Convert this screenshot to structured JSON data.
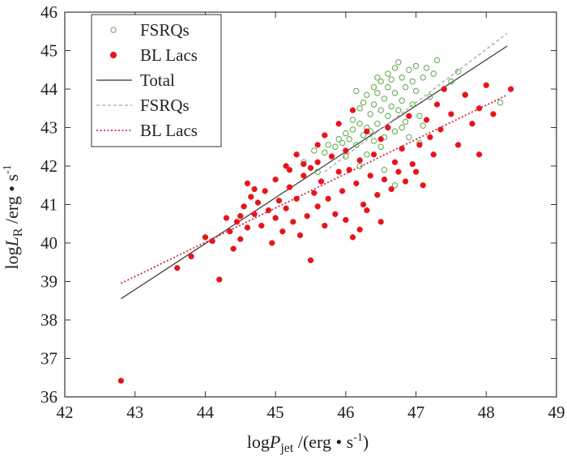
{
  "chart_data": {
    "type": "scatter",
    "title": "",
    "xlabel": {
      "prefix": "log",
      "var": "P",
      "sub": "jet",
      "unit": " /(erg • s",
      "sup": "-1",
      "suffix": ")"
    },
    "ylabel": {
      "prefix": "log",
      "var": "L",
      "sub": "R",
      "unit": " /erg • s",
      "sup": "-1"
    },
    "xlim": [
      42,
      49
    ],
    "ylim": [
      36,
      46
    ],
    "xticks": [
      42,
      43,
      44,
      45,
      46,
      47,
      48,
      49
    ],
    "yticks": [
      36,
      37,
      38,
      39,
      40,
      41,
      42,
      43,
      44,
      45,
      46
    ],
    "legend_position": "top-left",
    "colors": {
      "fsrq": "#5aa84a",
      "bllac": "#e8141c",
      "total": "#333333",
      "fsrq_fit": "#b5b5b5",
      "bllac_fit": "#c8102e"
    },
    "legend": [
      {
        "label": "FSRQs",
        "kind": "open-circle",
        "color": "#5aa84a"
      },
      {
        "label": "BL Lacs",
        "kind": "filled-circle",
        "color": "#e8141c"
      },
      {
        "label": "Total",
        "kind": "solid-line",
        "color": "#333333"
      },
      {
        "label": "FSRQs",
        "kind": "dashed-line",
        "color": "#b5b5b5"
      },
      {
        "label": "BL Lacs",
        "kind": "dotted-line",
        "color": "#c8102e"
      }
    ],
    "fits": [
      {
        "name": "Total",
        "style": "solid",
        "color": "#333333",
        "x": [
          42.8,
          48.3
        ],
        "y": [
          38.55,
          45.12
        ]
      },
      {
        "name": "FSRQs",
        "style": "dashed",
        "color": "#b5b5b5",
        "x": [
          45.7,
          48.3
        ],
        "y": [
          41.85,
          45.45
        ]
      },
      {
        "name": "BL Lacs",
        "style": "dotted",
        "color": "#c8102e",
        "x": [
          42.8,
          48.3
        ],
        "y": [
          38.95,
          43.85
        ]
      }
    ],
    "series": [
      {
        "name": "FSRQs",
        "marker": "open-circle",
        "color": "#5aa84a",
        "points": [
          [
            45.55,
            42.4
          ],
          [
            45.7,
            42.35
          ],
          [
            45.75,
            42.55
          ],
          [
            45.85,
            42.5
          ],
          [
            45.9,
            42.7
          ],
          [
            45.95,
            42.6
          ],
          [
            46.0,
            42.85
          ],
          [
            46.05,
            42.7
          ],
          [
            46.1,
            42.95
          ],
          [
            46.1,
            43.2
          ],
          [
            46.15,
            42.55
          ],
          [
            46.2,
            43.1
          ],
          [
            46.2,
            43.5
          ],
          [
            46.25,
            42.8
          ],
          [
            46.25,
            43.65
          ],
          [
            46.3,
            43.0
          ],
          [
            46.3,
            43.85
          ],
          [
            46.35,
            43.35
          ],
          [
            46.4,
            42.65
          ],
          [
            46.4,
            43.6
          ],
          [
            46.4,
            44.05
          ],
          [
            46.45,
            43.1
          ],
          [
            46.45,
            43.9
          ],
          [
            46.5,
            43.45
          ],
          [
            46.5,
            44.2
          ],
          [
            46.55,
            42.75
          ],
          [
            46.55,
            43.75
          ],
          [
            46.6,
            43.3
          ],
          [
            46.6,
            44.05
          ],
          [
            46.6,
            44.4
          ],
          [
            46.65,
            43.55
          ],
          [
            46.65,
            44.25
          ],
          [
            46.7,
            42.9
          ],
          [
            46.7,
            43.9
          ],
          [
            46.7,
            44.55
          ],
          [
            46.75,
            43.45
          ],
          [
            46.75,
            44.7
          ],
          [
            46.8,
            43.7
          ],
          [
            46.8,
            44.3
          ],
          [
            46.85,
            43.15
          ],
          [
            46.85,
            44.05
          ],
          [
            46.9,
            44.5
          ],
          [
            46.95,
            43.6
          ],
          [
            46.95,
            44.2
          ],
          [
            47.0,
            43.95
          ],
          [
            47.0,
            44.6
          ],
          [
            47.05,
            43.3
          ],
          [
            47.1,
            44.3
          ],
          [
            47.15,
            44.55
          ],
          [
            47.2,
            43.8
          ],
          [
            47.25,
            44.4
          ],
          [
            47.3,
            44.75
          ],
          [
            47.4,
            44.0
          ],
          [
            47.5,
            44.2
          ],
          [
            47.6,
            44.45
          ],
          [
            47.7,
            43.85
          ],
          [
            48.2,
            43.65
          ],
          [
            46.0,
            42.25
          ],
          [
            46.2,
            42.0
          ],
          [
            45.4,
            42.1
          ],
          [
            45.6,
            41.85
          ],
          [
            46.3,
            42.3
          ],
          [
            46.5,
            42.5
          ],
          [
            46.9,
            42.75
          ],
          [
            47.1,
            43.05
          ],
          [
            46.35,
            42.9
          ],
          [
            46.55,
            41.9
          ],
          [
            46.7,
            41.5
          ],
          [
            46.15,
            43.95
          ],
          [
            46.45,
            44.3
          ],
          [
            46.8,
            43.0
          ],
          [
            47.05,
            42.6
          ]
        ]
      },
      {
        "name": "BL Lacs",
        "marker": "filled-circle",
        "color": "#e8141c",
        "points": [
          [
            42.8,
            36.42
          ],
          [
            43.6,
            39.35
          ],
          [
            43.8,
            39.65
          ],
          [
            44.0,
            40.15
          ],
          [
            44.1,
            40.05
          ],
          [
            44.2,
            39.05
          ],
          [
            44.3,
            40.65
          ],
          [
            44.35,
            40.3
          ],
          [
            44.4,
            39.85
          ],
          [
            44.45,
            40.55
          ],
          [
            44.5,
            40.1
          ],
          [
            44.55,
            40.95
          ],
          [
            44.6,
            41.55
          ],
          [
            44.6,
            40.4
          ],
          [
            44.65,
            41.2
          ],
          [
            44.7,
            40.75
          ],
          [
            44.75,
            41.05
          ],
          [
            44.8,
            40.45
          ],
          [
            44.85,
            41.35
          ],
          [
            44.9,
            40.85
          ],
          [
            44.95,
            40.0
          ],
          [
            45.0,
            41.65
          ],
          [
            45.0,
            40.65
          ],
          [
            45.05,
            41.1
          ],
          [
            45.1,
            40.3
          ],
          [
            45.15,
            42.0
          ],
          [
            45.15,
            40.9
          ],
          [
            45.2,
            41.45
          ],
          [
            45.25,
            40.55
          ],
          [
            45.3,
            42.3
          ],
          [
            45.3,
            41.15
          ],
          [
            45.35,
            40.2
          ],
          [
            45.4,
            42.05
          ],
          [
            45.4,
            41.75
          ],
          [
            45.45,
            40.7
          ],
          [
            45.5,
            39.55
          ],
          [
            45.5,
            41.95
          ],
          [
            45.55,
            41.3
          ],
          [
            45.6,
            42.55
          ],
          [
            45.6,
            40.95
          ],
          [
            45.65,
            41.6
          ],
          [
            45.7,
            40.45
          ],
          [
            45.7,
            42.8
          ],
          [
            45.75,
            41.15
          ],
          [
            45.8,
            42.25
          ],
          [
            45.85,
            40.75
          ],
          [
            45.9,
            43.1
          ],
          [
            45.9,
            41.85
          ],
          [
            45.95,
            41.35
          ],
          [
            46.0,
            42.4
          ],
          [
            46.0,
            40.6
          ],
          [
            46.05,
            41.9
          ],
          [
            46.1,
            40.15
          ],
          [
            46.1,
            43.45
          ],
          [
            46.15,
            41.55
          ],
          [
            46.2,
            42.15
          ],
          [
            46.25,
            41.0
          ],
          [
            46.3,
            42.9
          ],
          [
            46.3,
            40.85
          ],
          [
            46.35,
            41.75
          ],
          [
            46.4,
            42.3
          ],
          [
            46.45,
            41.25
          ],
          [
            46.5,
            40.55
          ],
          [
            46.5,
            42.7
          ],
          [
            46.55,
            41.65
          ],
          [
            46.6,
            43.0
          ],
          [
            46.65,
            41.4
          ],
          [
            46.7,
            42.1
          ],
          [
            46.75,
            41.85
          ],
          [
            46.8,
            42.45
          ],
          [
            46.85,
            41.6
          ],
          [
            46.9,
            43.3
          ],
          [
            46.95,
            42.05
          ],
          [
            47.0,
            41.85
          ],
          [
            47.05,
            42.55
          ],
          [
            47.1,
            41.5
          ],
          [
            47.15,
            43.2
          ],
          [
            47.2,
            42.75
          ],
          [
            47.25,
            42.3
          ],
          [
            47.3,
            43.6
          ],
          [
            47.35,
            42.95
          ],
          [
            47.4,
            44.0
          ],
          [
            47.5,
            43.35
          ],
          [
            47.6,
            42.55
          ],
          [
            47.7,
            43.85
          ],
          [
            47.8,
            43.1
          ],
          [
            47.9,
            42.3
          ],
          [
            47.9,
            43.5
          ],
          [
            48.0,
            44.1
          ],
          [
            48.1,
            43.35
          ],
          [
            48.35,
            44.0
          ],
          [
            44.7,
            41.4
          ],
          [
            44.5,
            40.7
          ],
          [
            45.2,
            41.9
          ],
          [
            45.6,
            42.1
          ],
          [
            46.2,
            40.35
          ]
        ]
      }
    ]
  }
}
